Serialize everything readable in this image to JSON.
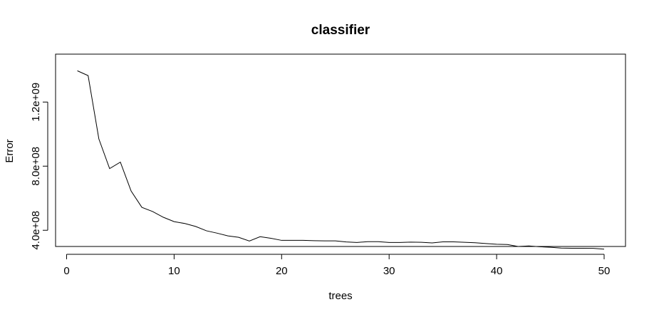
{
  "chart_data": {
    "type": "line",
    "title": "classifier",
    "xlabel": "trees",
    "ylabel": "Error",
    "xlim": [
      0,
      50
    ],
    "ylim": [
      250000000,
      1450000000
    ],
    "x_ticks": [
      0,
      10,
      20,
      30,
      40,
      50
    ],
    "x_tick_labels": [
      "0",
      "10",
      "20",
      "30",
      "40",
      "50"
    ],
    "y_ticks": [
      400000000,
      800000000,
      1200000000
    ],
    "y_tick_labels": [
      "4.0e+08",
      "8.0e+08",
      "1.2e+09"
    ],
    "grid": false,
    "line_color": "#000000",
    "series": [
      {
        "x": [
          1,
          2,
          3,
          4,
          5,
          6,
          7,
          8,
          9,
          10,
          11,
          12,
          13,
          14,
          15,
          16,
          17,
          18,
          19,
          20,
          21,
          22,
          23,
          24,
          25,
          26,
          27,
          28,
          29,
          30,
          31,
          32,
          33,
          34,
          35,
          36,
          37,
          38,
          39,
          40,
          41,
          42,
          43,
          44,
          45,
          46,
          47,
          48,
          49,
          50
        ],
        "values": [
          1395000000,
          1365000000,
          970000000,
          785000000,
          825000000,
          645000000,
          543000000,
          517000000,
          481000000,
          454000000,
          442000000,
          424000000,
          397000000,
          382000000,
          365000000,
          356000000,
          333000000,
          360000000,
          350000000,
          337000000,
          337000000,
          337000000,
          335000000,
          334000000,
          334000000,
          327000000,
          324000000,
          329000000,
          329000000,
          324000000,
          324000000,
          326000000,
          325000000,
          321000000,
          328000000,
          328000000,
          325000000,
          322000000,
          317000000,
          313000000,
          311000000,
          299000000,
          302000000,
          297000000,
          294000000,
          289000000,
          288000000,
          288000000,
          287000000,
          282000000
        ]
      }
    ]
  }
}
